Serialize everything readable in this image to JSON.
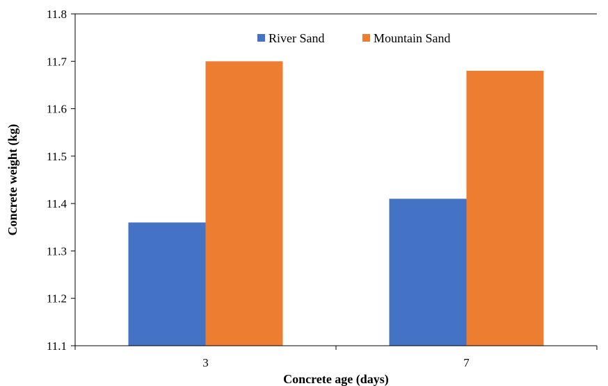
{
  "chart_data": {
    "type": "bar",
    "title": "",
    "xlabel": "Concrete age (days)",
    "ylabel": "Concrete weight (kg)",
    "categories": [
      "3",
      "7"
    ],
    "series": [
      {
        "name": "River Sand",
        "values": [
          11.36,
          11.41
        ],
        "color": "#4472c4"
      },
      {
        "name": "Mountain Sand",
        "values": [
          11.7,
          11.68
        ],
        "color": "#ed7d31"
      }
    ],
    "ylim": [
      11.1,
      11.8
    ],
    "yticks": [
      "11.1",
      "11.2",
      "11.3",
      "11.4",
      "11.5",
      "11.6",
      "11.7",
      "11.8"
    ],
    "grid": false,
    "legend_position": "top-center"
  }
}
